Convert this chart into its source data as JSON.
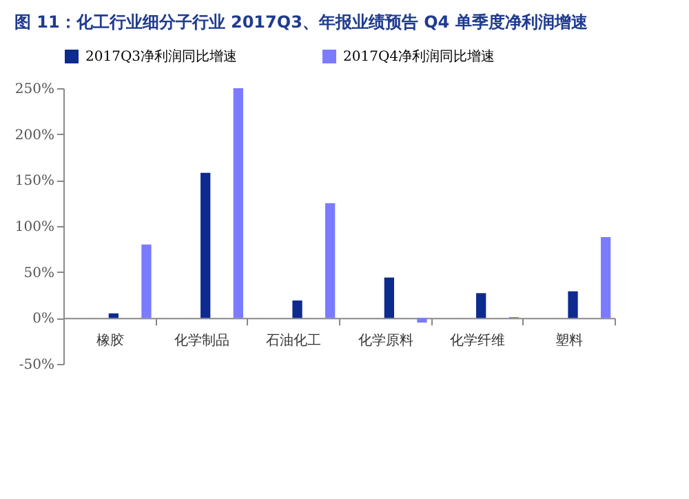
{
  "chart_data": {
    "type": "bar",
    "title": "图 11：化工行业细分子行业 2017Q3、年报业绩预告 Q4 单季度净利润增速",
    "categories": [
      "橡胶",
      "化学制品",
      "石油化工",
      "化学原料",
      "化学纤维",
      "塑料"
    ],
    "series": [
      {
        "name": "2017Q3净利润同比增速",
        "color": "#0d2a8f",
        "values": [
          5,
          158,
          19,
          44,
          27,
          29
        ]
      },
      {
        "name": "2017Q4净利润同比增速",
        "color": "#7b7bff",
        "values": [
          80,
          250,
          125,
          -5,
          1,
          88
        ]
      }
    ],
    "ylim": [
      -50,
      250
    ],
    "yticks": [
      {
        "value": -50,
        "label": "-50%"
      },
      {
        "value": 0,
        "label": "0%"
      },
      {
        "value": 50,
        "label": "50%"
      },
      {
        "value": 100,
        "label": "100%"
      },
      {
        "value": 150,
        "label": "150%"
      },
      {
        "value": 200,
        "label": "200%"
      },
      {
        "value": 250,
        "label": "250%"
      }
    ],
    "legend": "top",
    "grid": false
  }
}
